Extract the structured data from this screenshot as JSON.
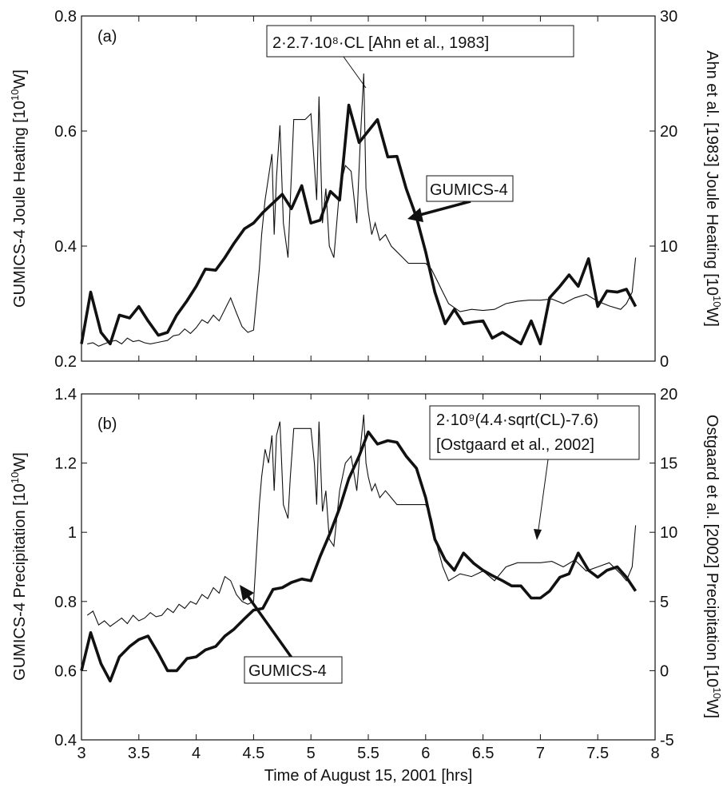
{
  "figure": {
    "xlabel": "Time of August 15, 2001 [hrs]"
  },
  "chart_data": [
    {
      "type": "line",
      "panel_label": "(a)",
      "xlim": [
        3,
        8
      ],
      "x_ticks": [
        "3",
        "3.5",
        "4",
        "4.5",
        "5",
        "5.5",
        "6",
        "6.5",
        "7",
        "7.5",
        "8"
      ],
      "ylabel_left": "GUMICS-4 Joule Heating [10^10 W]",
      "ylim_left": [
        0.2,
        0.8
      ],
      "yticks_left": [
        "0.2",
        "0.4",
        "0.6",
        "0.8"
      ],
      "ylabel_right": "Ahn et al. [1983] Joule Heating [10^10 W]",
      "ylim_right": [
        0,
        30
      ],
      "yticks_right": [
        "0",
        "10",
        "20",
        "30"
      ],
      "annotations": [
        {
          "text": "2·2.7·10⁸·CL [Ahn et al., 1983]"
        },
        {
          "text": "GUMICS-4"
        }
      ],
      "series": [
        {
          "name": "GUMICS-4",
          "axis": "left",
          "style": "thick",
          "x": [
            3.0,
            3.08,
            3.17,
            3.25,
            3.33,
            3.42,
            3.5,
            3.58,
            3.67,
            3.75,
            3.83,
            3.92,
            4.0,
            4.08,
            4.17,
            4.25,
            4.33,
            4.42,
            4.5,
            4.58,
            4.67,
            4.75,
            4.83,
            4.92,
            5.0,
            5.08,
            5.17,
            5.25,
            5.33,
            5.42,
            5.5,
            5.58,
            5.67,
            5.75,
            5.83,
            5.92,
            6.0,
            6.08,
            6.17,
            6.25,
            6.33,
            6.42,
            6.5,
            6.58,
            6.67,
            6.75,
            6.83,
            6.92,
            7.0,
            7.08,
            7.17,
            7.25,
            7.33,
            7.42,
            7.5,
            7.58,
            7.67,
            7.75,
            7.83
          ],
          "y": [
            0.23,
            0.32,
            0.25,
            0.23,
            0.28,
            0.275,
            0.295,
            0.27,
            0.245,
            0.25,
            0.28,
            0.305,
            0.33,
            0.36,
            0.358,
            0.38,
            0.405,
            0.43,
            0.44,
            0.458,
            0.475,
            0.49,
            0.465,
            0.505,
            0.44,
            0.445,
            0.495,
            0.48,
            0.645,
            0.58,
            0.6,
            0.62,
            0.555,
            0.556,
            0.5,
            0.45,
            0.39,
            0.32,
            0.265,
            0.29,
            0.265,
            0.268,
            0.27,
            0.24,
            0.25,
            0.24,
            0.23,
            0.27,
            0.23,
            0.31,
            0.33,
            0.35,
            0.33,
            0.378,
            0.295,
            0.322,
            0.32,
            0.325,
            0.295
          ]
        },
        {
          "name": "2·2.7·10⁸·CL [Ahn et al., 1983]",
          "axis": "right",
          "style": "thin",
          "x": [
            3.05,
            3.1,
            3.15,
            3.2,
            3.25,
            3.3,
            3.35,
            3.4,
            3.45,
            3.5,
            3.55,
            3.6,
            3.65,
            3.7,
            3.75,
            3.8,
            3.85,
            3.9,
            3.95,
            4.0,
            4.05,
            4.1,
            4.15,
            4.2,
            4.25,
            4.3,
            4.35,
            4.4,
            4.45,
            4.5,
            4.55,
            4.57,
            4.6,
            4.63,
            4.66,
            4.68,
            4.7,
            4.73,
            4.76,
            4.8,
            4.82,
            4.85,
            4.88,
            4.9,
            4.95,
            5.0,
            5.03,
            5.05,
            5.07,
            5.1,
            5.13,
            5.16,
            5.2,
            5.25,
            5.3,
            5.35,
            5.4,
            5.43,
            5.46,
            5.48,
            5.5,
            5.53,
            5.56,
            5.6,
            5.65,
            5.7,
            5.75,
            5.8,
            5.85,
            5.9,
            5.95,
            6.0,
            6.05,
            6.1,
            6.15,
            6.2,
            6.3,
            6.4,
            6.5,
            6.6,
            6.7,
            6.8,
            6.9,
            7.0,
            7.1,
            7.2,
            7.3,
            7.4,
            7.5,
            7.6,
            7.7,
            7.75,
            7.8,
            7.83
          ],
          "y": [
            1.5,
            1.6,
            1.3,
            1.5,
            1.7,
            1.8,
            1.5,
            2.0,
            1.7,
            1.8,
            1.6,
            1.5,
            1.6,
            1.7,
            1.8,
            2.2,
            2.3,
            2.8,
            2.4,
            2.9,
            3.6,
            3.3,
            4.0,
            3.5,
            4.5,
            5.5,
            4.2,
            3.0,
            2.5,
            2.7,
            8.0,
            11.0,
            14.0,
            16.0,
            18.0,
            11.0,
            16.0,
            20.5,
            12.0,
            9.0,
            14.0,
            21.0,
            21.0,
            21.0,
            21.0,
            21.5,
            17.0,
            14.0,
            23.0,
            12.0,
            15.0,
            10.0,
            9.0,
            15.0,
            17.0,
            16.5,
            12.0,
            19.0,
            25.0,
            15.0,
            13.0,
            11.0,
            12.0,
            10.5,
            11.0,
            10.0,
            9.5,
            9.0,
            8.5,
            8.5,
            8.5,
            8.5,
            8.0,
            7.0,
            6.0,
            5.0,
            4.3,
            4.5,
            4.4,
            4.5,
            5.0,
            5.2,
            5.3,
            5.3,
            5.4,
            5.0,
            5.5,
            5.8,
            5.2,
            4.8,
            4.5,
            5.0,
            6.0,
            9.0
          ]
        }
      ]
    },
    {
      "type": "line",
      "panel_label": "(b)",
      "xlim": [
        3,
        8
      ],
      "x_ticks": [
        "3",
        "3.5",
        "4",
        "4.5",
        "5",
        "5.5",
        "6",
        "6.5",
        "7",
        "7.5",
        "8"
      ],
      "ylabel_left": "GUMICS-4 Precipitation [10^10 W]",
      "ylim_left": [
        0.4,
        1.4
      ],
      "yticks_left": [
        "0.4",
        "0.6",
        "0.8",
        "1",
        "1.2",
        "1.4"
      ],
      "ylabel_right": "Ostgaard et al. [2002] Precipitation [10^10 W]",
      "ylim_right": [
        -5,
        20
      ],
      "yticks_right": [
        "-5",
        "0",
        "5",
        "10",
        "15",
        "20"
      ],
      "annotations": [
        {
          "text": "2·10⁹(4.4·sqrt(CL)-7.6)"
        },
        {
          "text": "[Ostgaard et al., 2002]"
        },
        {
          "text": "GUMICS-4"
        }
      ],
      "series": [
        {
          "name": "GUMICS-4",
          "axis": "left",
          "style": "thick",
          "x": [
            3.0,
            3.08,
            3.17,
            3.25,
            3.33,
            3.42,
            3.5,
            3.58,
            3.67,
            3.75,
            3.83,
            3.92,
            4.0,
            4.08,
            4.17,
            4.25,
            4.33,
            4.42,
            4.5,
            4.58,
            4.67,
            4.75,
            4.83,
            4.92,
            5.0,
            5.08,
            5.17,
            5.25,
            5.33,
            5.42,
            5.5,
            5.58,
            5.67,
            5.75,
            5.83,
            5.92,
            6.0,
            6.08,
            6.17,
            6.25,
            6.33,
            6.42,
            6.5,
            6.58,
            6.67,
            6.75,
            6.83,
            6.92,
            7.0,
            7.08,
            7.17,
            7.25,
            7.33,
            7.42,
            7.5,
            7.58,
            7.67,
            7.75,
            7.83
          ],
          "y": [
            0.6,
            0.71,
            0.62,
            0.57,
            0.64,
            0.67,
            0.69,
            0.7,
            0.65,
            0.6,
            0.6,
            0.635,
            0.64,
            0.66,
            0.67,
            0.7,
            0.72,
            0.75,
            0.775,
            0.78,
            0.835,
            0.84,
            0.855,
            0.865,
            0.86,
            0.93,
            1.0,
            1.07,
            1.155,
            1.22,
            1.29,
            1.255,
            1.265,
            1.26,
            1.22,
            1.185,
            1.1,
            0.98,
            0.92,
            0.89,
            0.94,
            0.91,
            0.89,
            0.875,
            0.86,
            0.845,
            0.845,
            0.81,
            0.81,
            0.83,
            0.87,
            0.88,
            0.94,
            0.89,
            0.87,
            0.89,
            0.9,
            0.87,
            0.83
          ]
        },
        {
          "name": "2·10⁹(4.4·sqrt(CL)-7.6) [Ostgaard et al., 2002]",
          "axis": "right",
          "style": "thin",
          "x": [
            3.05,
            3.1,
            3.15,
            3.2,
            3.25,
            3.3,
            3.35,
            3.4,
            3.45,
            3.5,
            3.55,
            3.6,
            3.65,
            3.7,
            3.75,
            3.8,
            3.85,
            3.9,
            3.95,
            4.0,
            4.05,
            4.1,
            4.15,
            4.2,
            4.25,
            4.3,
            4.35,
            4.4,
            4.45,
            4.5,
            4.55,
            4.57,
            4.6,
            4.63,
            4.66,
            4.68,
            4.7,
            4.73,
            4.76,
            4.8,
            4.82,
            4.85,
            4.88,
            4.9,
            4.95,
            5.0,
            5.03,
            5.05,
            5.07,
            5.1,
            5.13,
            5.16,
            5.2,
            5.25,
            5.3,
            5.35,
            5.4,
            5.43,
            5.46,
            5.48,
            5.5,
            5.53,
            5.56,
            5.6,
            5.65,
            5.7,
            5.75,
            5.8,
            5.85,
            5.9,
            5.95,
            6.0,
            6.05,
            6.1,
            6.15,
            6.2,
            6.3,
            6.4,
            6.5,
            6.6,
            6.7,
            6.8,
            6.9,
            7.0,
            7.1,
            7.2,
            7.3,
            7.4,
            7.5,
            7.6,
            7.7,
            7.75,
            7.8,
            7.83
          ],
          "y": [
            4.0,
            4.3,
            3.3,
            3.6,
            3.2,
            3.5,
            3.8,
            3.4,
            4.0,
            3.6,
            3.8,
            4.2,
            3.9,
            4.0,
            4.5,
            4.2,
            4.8,
            4.5,
            5.0,
            4.8,
            5.5,
            5.2,
            6.0,
            5.6,
            6.8,
            6.5,
            5.5,
            5.0,
            4.8,
            5.0,
            12.0,
            14.0,
            16.0,
            15.0,
            17.0,
            13.0,
            17.0,
            18.0,
            12.0,
            11.0,
            14.0,
            17.5,
            17.5,
            17.5,
            17.5,
            17.5,
            15.0,
            12.0,
            18.0,
            11.5,
            13.0,
            9.5,
            9.0,
            13.0,
            15.0,
            15.5,
            13.0,
            16.0,
            18.5,
            15.0,
            14.0,
            13.0,
            13.5,
            12.5,
            13.0,
            12.5,
            12.0,
            12.0,
            12.0,
            12.0,
            12.0,
            12.0,
            11.0,
            9.0,
            7.5,
            6.5,
            7.0,
            6.8,
            7.2,
            6.5,
            7.5,
            7.8,
            7.8,
            7.8,
            7.9,
            7.5,
            8.0,
            7.2,
            7.5,
            7.8,
            7.0,
            6.5,
            7.5,
            10.5
          ]
        }
      ]
    }
  ]
}
